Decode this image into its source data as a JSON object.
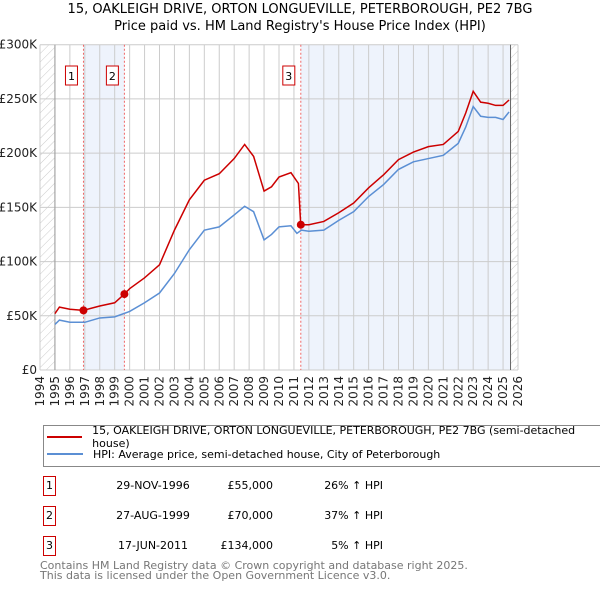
{
  "chart_data": {
    "type": "line",
    "title": "15, OAKLEIGH DRIVE, ORTON LONGUEVILLE, PETERBOROUGH, PE2 7BG",
    "subtitle": "Price paid vs. HM Land Registry's House Price Index (HPI)",
    "xlim": [
      1994,
      2026
    ],
    "ylim": [
      0,
      300000
    ],
    "x_ticks": [
      "1994",
      "1995",
      "1996",
      "1997",
      "1998",
      "1999",
      "2000",
      "2001",
      "2002",
      "2003",
      "2004",
      "2005",
      "2006",
      "2007",
      "2008",
      "2009",
      "2010",
      "2011",
      "2012",
      "2013",
      "2014",
      "2015",
      "2016",
      "2017",
      "2018",
      "2019",
      "2020",
      "2021",
      "2022",
      "2023",
      "2024",
      "2025",
      "2026"
    ],
    "y_ticks": [
      {
        "v": 0,
        "label": "£0"
      },
      {
        "v": 50000,
        "label": "£50K"
      },
      {
        "v": 100000,
        "label": "£100K"
      },
      {
        "v": 150000,
        "label": "£150K"
      },
      {
        "v": 200000,
        "label": "£200K"
      },
      {
        "v": 250000,
        "label": "£250K"
      },
      {
        "v": 300000,
        "label": "£300K"
      }
    ],
    "grid": true,
    "series": [
      {
        "name": "15, OAKLEIGH DRIVE, ORTON LONGUEVILLE, PETERBOROUGH, PE2 7BG (semi-detached house)",
        "color": "#cc0000",
        "x": [
          1995,
          1995.3,
          1996,
          1996.9,
          1998,
          1999,
          1999.65,
          2000,
          2001,
          2002,
          2003,
          2004,
          2005,
          2006,
          2007,
          2007.7,
          2008.3,
          2009,
          2009.5,
          2010,
          2010.8,
          2011.3,
          2011.45,
          2011.46,
          2012,
          2013,
          2014,
          2015,
          2016,
          2017,
          2018,
          2019,
          2020,
          2021,
          2022,
          2022.5,
          2023,
          2023.5,
          2024,
          2024.5,
          2025,
          2025.4
        ],
        "y": [
          52000,
          58000,
          56000,
          55000,
          59000,
          62000,
          70000,
          75000,
          85000,
          97000,
          129000,
          157000,
          175000,
          181000,
          195000,
          208000,
          197000,
          165000,
          169000,
          178000,
          182000,
          172000,
          135000,
          134000,
          134000,
          137000,
          145000,
          154000,
          168000,
          180000,
          194000,
          201000,
          206000,
          208000,
          220000,
          237000,
          257000,
          247000,
          246000,
          244000,
          244000,
          249000
        ]
      },
      {
        "name": "HPI: Average price, semi-detached house, City of Peterborough",
        "color": "#5b8fd4",
        "x": [
          1995,
          1995.3,
          1996,
          1997,
          1998,
          1999,
          2000,
          2001,
          2002,
          2003,
          2004,
          2005,
          2006,
          2007,
          2007.7,
          2008.3,
          2009,
          2009.5,
          2010,
          2010.8,
          2011.2,
          2011.5,
          2012,
          2013,
          2014,
          2015,
          2016,
          2017,
          2018,
          2019,
          2020,
          2021,
          2022,
          2022.5,
          2023,
          2023.5,
          2024,
          2024.5,
          2025,
          2025.4
        ],
        "y": [
          42000,
          46000,
          44000,
          44000,
          48000,
          49000,
          54000,
          62000,
          71000,
          89000,
          111000,
          129000,
          132000,
          143000,
          151000,
          146000,
          120000,
          125000,
          132000,
          133000,
          126000,
          129000,
          128000,
          129000,
          138000,
          146000,
          160000,
          171000,
          185000,
          192000,
          195000,
          198000,
          209000,
          224000,
          243000,
          234000,
          233000,
          233000,
          231000,
          238000
        ]
      }
    ],
    "sales": [
      {
        "n": "1",
        "x": 1996.91,
        "y": 55000,
        "date": "29-NOV-1996",
        "price": "£55,000",
        "hpi": "26% ↑ HPI"
      },
      {
        "n": "2",
        "x": 1999.65,
        "y": 70000,
        "date": "27-AUG-1999",
        "price": "£70,000",
        "hpi": "37% ↑ HPI"
      },
      {
        "n": "3",
        "x": 2011.46,
        "y": 134000,
        "date": "17-JUN-2011",
        "price": "£134,000",
        "hpi": "5% ↑ HPI"
      }
    ],
    "legend_placement": "below"
  },
  "footer": {
    "line1": "Contains HM Land Registry data © Crown copyright and database right 2025.",
    "line2": "This data is licensed under the Open Government Licence v3.0."
  }
}
